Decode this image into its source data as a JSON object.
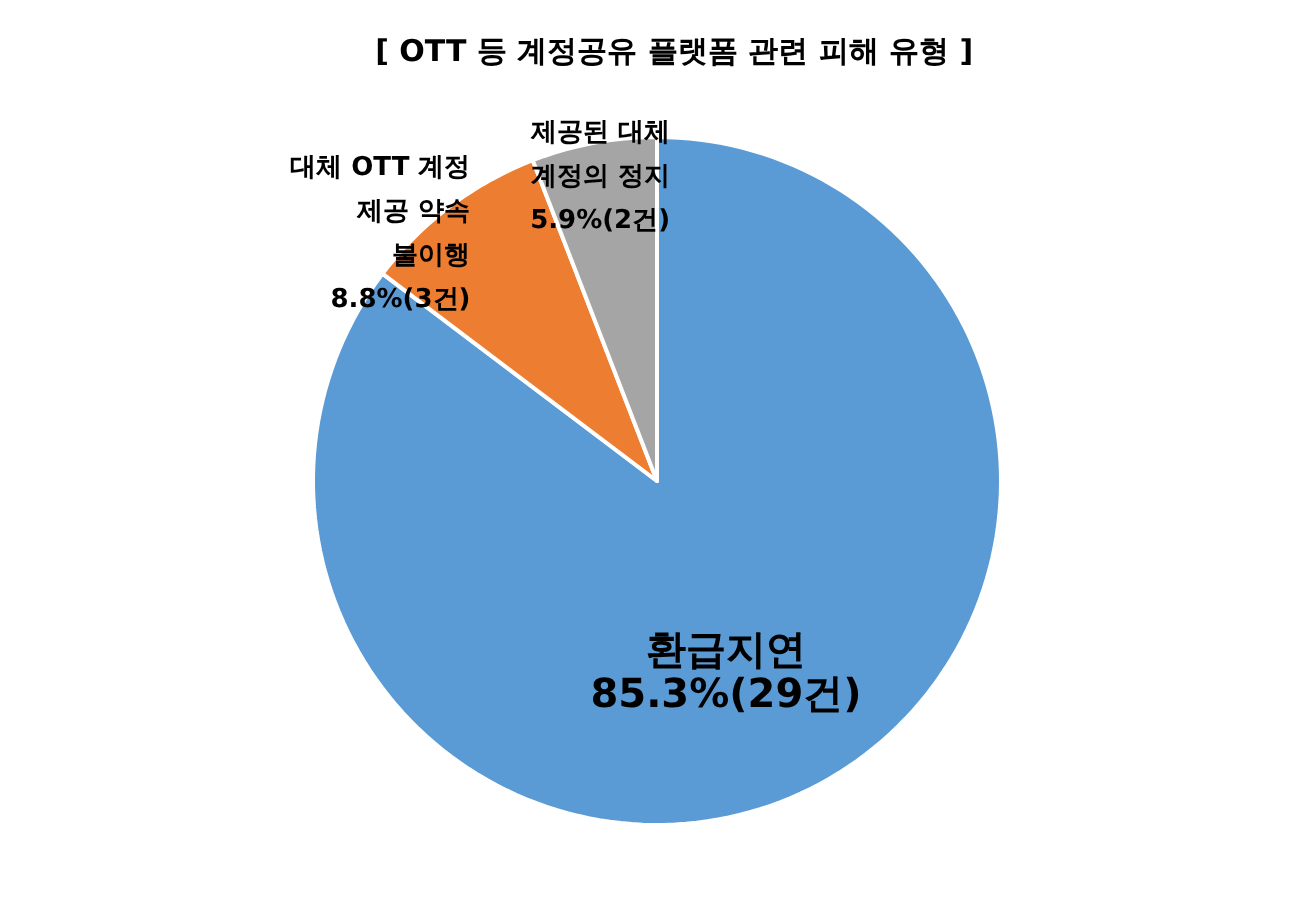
{
  "chart_data": {
    "type": "pie",
    "title": "[ OTT 등 계정공유 플랫폼 관련 피해 유형 ]",
    "categories": [
      "환급지연",
      "대체 OTT 계정\n제공 약속\n불이행",
      "제공된 대체\n계정의 정지"
    ],
    "values": [
      29,
      3,
      2
    ],
    "value_labels": [
      "85.3%(29건)",
      "8.8%(3건)",
      "5.9%(2건)"
    ],
    "colors": [
      "#5b9bd5",
      "#ed7d31",
      "#a5a5a5"
    ]
  }
}
